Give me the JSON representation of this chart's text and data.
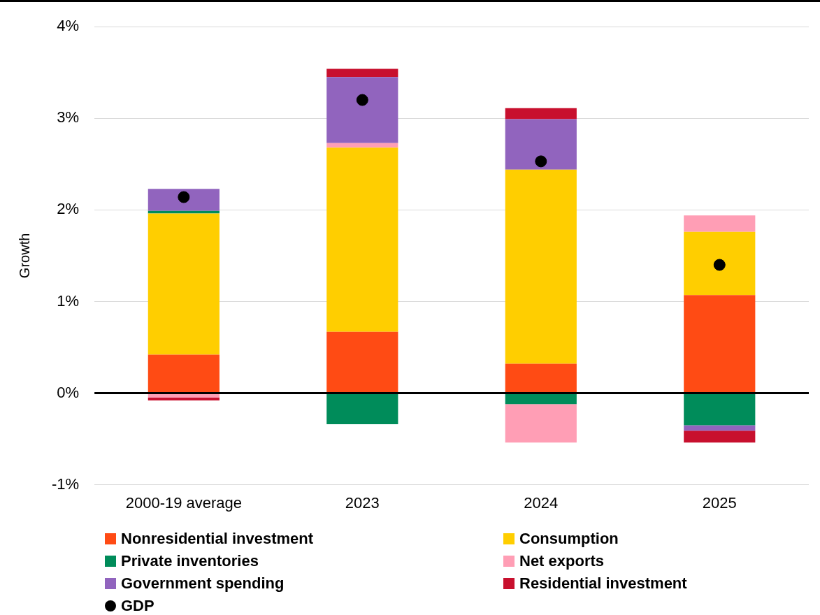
{
  "chart_data": {
    "type": "bar",
    "stacked": true,
    "ylabel": "Growth",
    "categories": [
      "2000-19 average",
      "2023",
      "2024",
      "2025"
    ],
    "series": [
      {
        "name": "Nonresidential investment",
        "color": "#ff4b14",
        "values": [
          0.42,
          0.67,
          0.32,
          1.07
        ]
      },
      {
        "name": "Consumption",
        "color": "#ffce00",
        "values": [
          1.54,
          2.01,
          2.12,
          0.69
        ]
      },
      {
        "name": "Private inventories",
        "color": "#008c5a",
        "values": [
          0.03,
          -0.34,
          -0.12,
          -0.35
        ]
      },
      {
        "name": "Net exports",
        "color": "#ff9eb5",
        "values": [
          -0.05,
          0.05,
          -0.42,
          0.18
        ]
      },
      {
        "name": "Government spending",
        "color": "#9164be",
        "values": [
          0.24,
          0.72,
          0.55,
          -0.06
        ]
      },
      {
        "name": "Residential investment",
        "color": "#c8102e",
        "values": [
          -0.03,
          0.09,
          0.12,
          -0.13
        ]
      },
      {
        "name": "GDP",
        "type": "scatter",
        "color": "#000000",
        "marker": "circle",
        "values": [
          2.14,
          3.2,
          2.53,
          1.4
        ]
      }
    ],
    "ylim": [
      -1,
      4
    ],
    "yticks": [
      {
        "value": -1,
        "label": "-1%"
      },
      {
        "value": 0,
        "label": "0%"
      },
      {
        "value": 1,
        "label": "1%"
      },
      {
        "value": 2,
        "label": "2%"
      },
      {
        "value": 3,
        "label": "3%"
      },
      {
        "value": 4,
        "label": "4%"
      }
    ],
    "ref_lines": [
      {
        "axis": "y",
        "value": 0,
        "color": "#000000"
      }
    ],
    "grid": "y",
    "legend": "bottom"
  }
}
